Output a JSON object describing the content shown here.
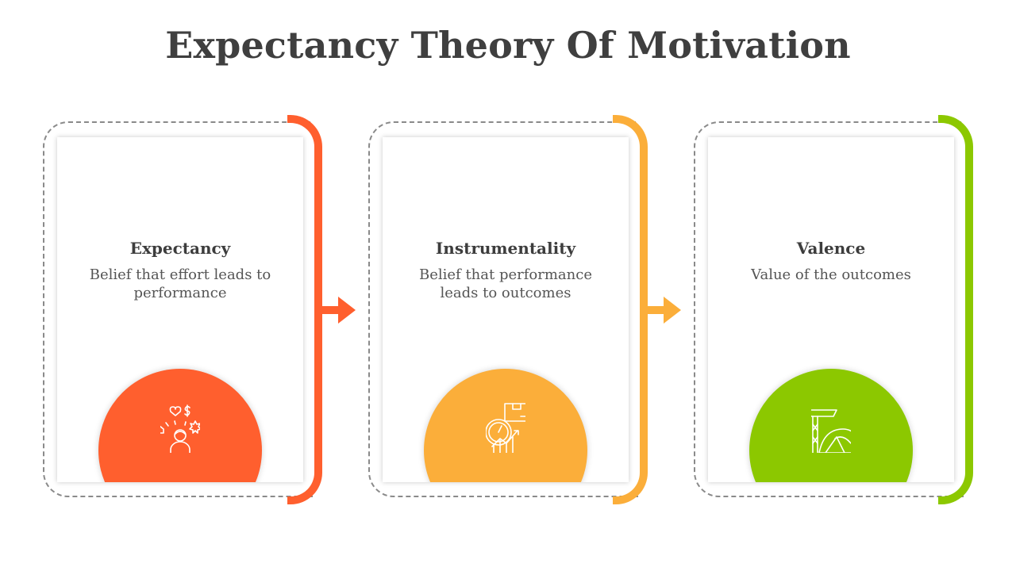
{
  "title": "Expectancy Theory Of Motivation",
  "steps": [
    {
      "heading": "Expectancy",
      "description": "Belief that effort leads to performance",
      "color": "#FF5F2E",
      "icon": "person-thinking-icon"
    },
    {
      "heading": "Instrumentality",
      "description": "Belief that performance leads to outcomes",
      "color": "#FBAE3A",
      "icon": "performance-gauge-icon"
    },
    {
      "heading": "Valence",
      "description": "Value of the outcomes",
      "color": "#8CC800",
      "icon": "reward-mine-icon"
    }
  ]
}
